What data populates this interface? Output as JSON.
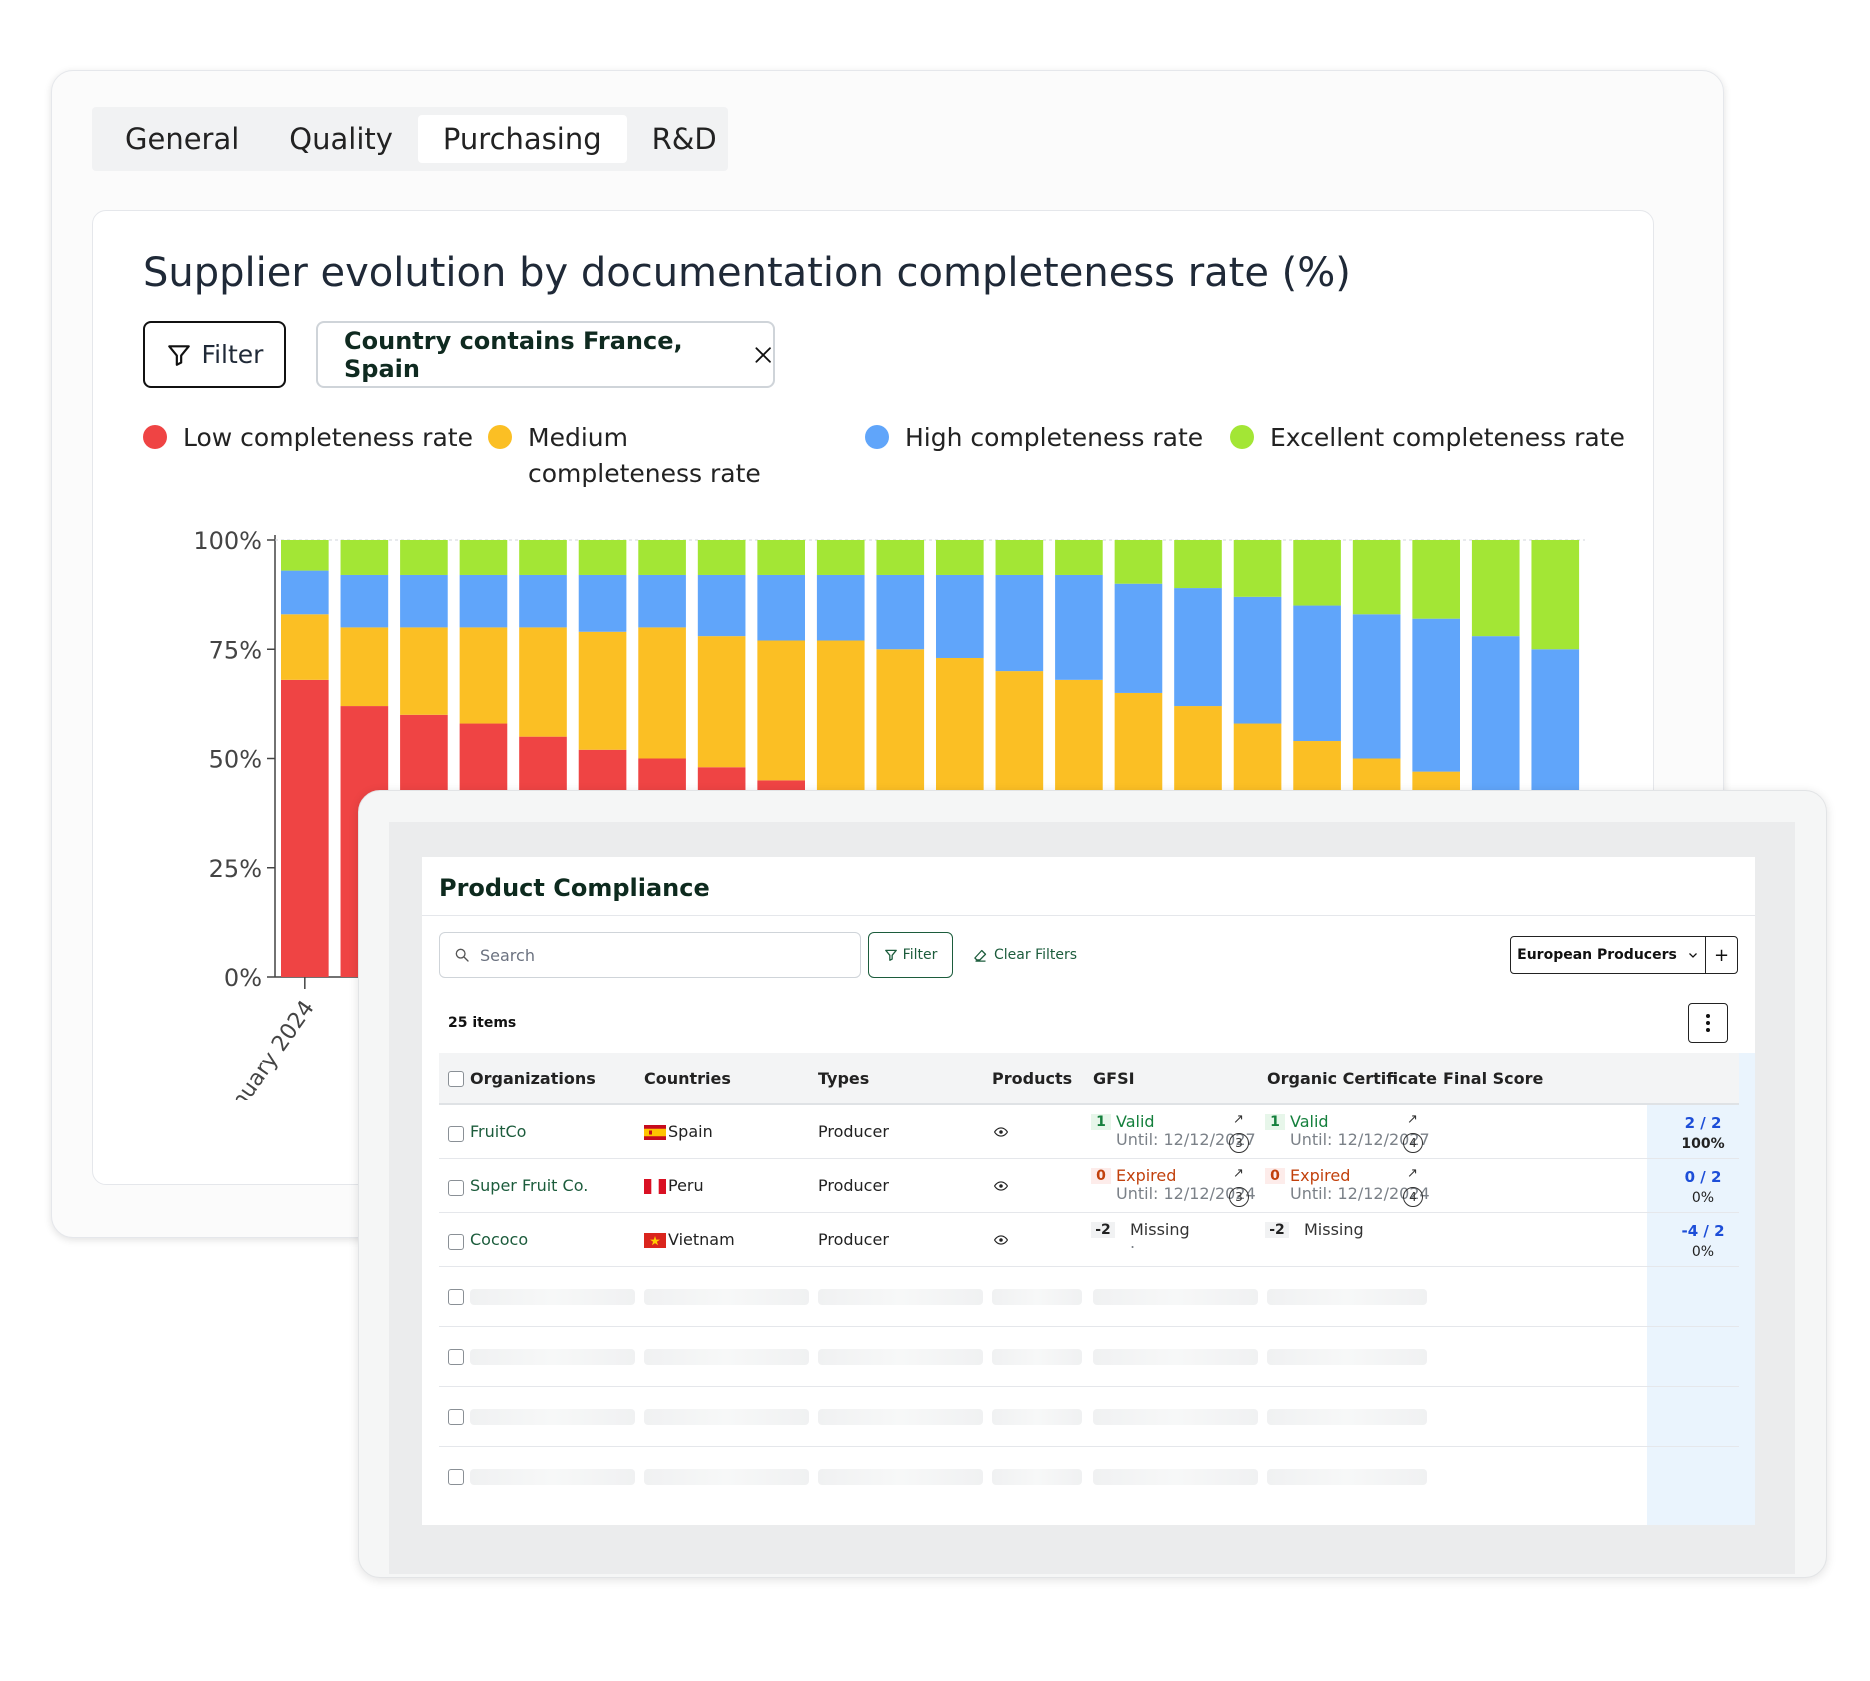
{
  "tabs": [
    {
      "label": "General",
      "active": false
    },
    {
      "label": "Quality",
      "active": false
    },
    {
      "label": "Purchasing",
      "active": true
    },
    {
      "label": "R&D",
      "active": false
    }
  ],
  "chart_section": {
    "title": "Supplier evolution by documentation completeness rate (%)",
    "filter_label": "Filter",
    "active_filter": "Country contains France, Spain",
    "legend": [
      {
        "label": "Low completeness rate",
        "color": "#ef4444"
      },
      {
        "label": "Medium completeness rate",
        "color": "#fbbf24"
      },
      {
        "label": "High completeness rate",
        "color": "#60a5fa"
      },
      {
        "label": "Excellent completeness rate",
        "color": "#a3e635"
      }
    ]
  },
  "chart_data": {
    "type": "bar",
    "stacked": true,
    "title": "Supplier evolution by documentation completeness rate (%)",
    "ylim": [
      0,
      100
    ],
    "yticks": [
      "0%",
      "25%",
      "50%",
      "75%",
      "100%"
    ],
    "visible_x_labels": [
      "January 2024"
    ],
    "series": [
      {
        "name": "Low completeness rate",
        "color": "#ef4444",
        "values": [
          68,
          62,
          60,
          58,
          55,
          52,
          50,
          48,
          45,
          42,
          40,
          38,
          36,
          34,
          32,
          30,
          28,
          26,
          24,
          22,
          20,
          18
        ]
      },
      {
        "name": "Medium completeness rate",
        "color": "#fbbf24",
        "values": [
          15,
          18,
          20,
          22,
          25,
          27,
          30,
          30,
          32,
          35,
          35,
          35,
          34,
          34,
          33,
          32,
          30,
          28,
          26,
          25,
          22,
          20
        ]
      },
      {
        "name": "High completeness rate",
        "color": "#60a5fa",
        "values": [
          10,
          12,
          12,
          12,
          12,
          13,
          12,
          14,
          15,
          15,
          17,
          19,
          22,
          24,
          25,
          27,
          29,
          31,
          33,
          35,
          36,
          37
        ]
      },
      {
        "name": "Excellent completeness rate",
        "color": "#a3e635",
        "values": [
          7,
          8,
          8,
          8,
          8,
          8,
          8,
          8,
          8,
          8,
          8,
          8,
          8,
          8,
          10,
          11,
          13,
          15,
          17,
          18,
          22,
          25
        ]
      }
    ]
  },
  "compliance": {
    "title": "Product Compliance",
    "search_placeholder": "Search",
    "filter_label": "Filter",
    "clear_filters_label": "Clear Filters",
    "view_select": "European Producers",
    "add_label": "+",
    "items_count": "25 items",
    "columns": [
      "Organizations",
      "Countries",
      "Types",
      "Products",
      "GFSI",
      "Organic Certificate",
      "Final Score"
    ],
    "rows": [
      {
        "organization": "FruitCo",
        "country": "Spain",
        "type": "Producer",
        "gfsi": {
          "count": "1",
          "status": "Valid",
          "until": "Until: 12/12/2027",
          "docs": "3"
        },
        "organic": {
          "count": "1",
          "status": "Valid",
          "until": "Until: 12/12/2027",
          "docs": "4"
        },
        "score": "2 / 2",
        "score_pct": "100%"
      },
      {
        "organization": "Super Fruit Co.",
        "country": "Peru",
        "type": "Producer",
        "gfsi": {
          "count": "0",
          "status": "Expired",
          "until": "Until: 12/12/2024",
          "docs": "3"
        },
        "organic": {
          "count": "0",
          "status": "Expired",
          "until": "Until: 12/12/2024",
          "docs": "4"
        },
        "score": "0 / 2",
        "score_pct": "0%"
      },
      {
        "organization": "Cococo",
        "country": "Vietnam",
        "type": "Producer",
        "gfsi": {
          "count": "-2",
          "status": "Missing",
          "until": "."
        },
        "organic": {
          "count": "-2",
          "status": "Missing"
        },
        "score": "-4 / 2",
        "score_pct": "0%"
      }
    ]
  },
  "colors": {
    "valid": "#15803d",
    "expired": "#c2410c",
    "score": "#1d4ed8",
    "brand": "#1c5c3c"
  }
}
